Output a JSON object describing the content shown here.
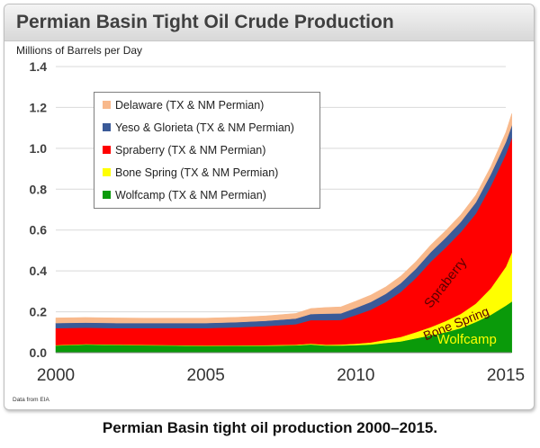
{
  "title": "Permian Basin Tight Oil Crude Production",
  "caption": "Permian Basin tight oil production 2000–2015.",
  "source": "Data from EIA",
  "chart_data": {
    "type": "area",
    "stacked": true,
    "title": "Permian Basin Tight Oil Crude Production",
    "ylabel": "Millions of Barrels per Day",
    "xlabel": "",
    "xlim": [
      2000,
      2015.2
    ],
    "ylim": [
      0,
      1.4
    ],
    "x_ticks": [
      2000,
      2005,
      2010,
      2015
    ],
    "y_ticks": [
      "0.0",
      "0.2",
      "0.4",
      "0.6",
      "0.8",
      "1.0",
      "1.2",
      "1.4"
    ],
    "grid": "horizontal",
    "legend_position": "upper-left",
    "x": [
      2000,
      2001,
      2002,
      2003,
      2004,
      2005,
      2006,
      2007,
      2008,
      2008.5,
      2009,
      2009.5,
      2010,
      2010.5,
      2011,
      2011.5,
      2012,
      2012.5,
      2013,
      2013.5,
      2014,
      2014.5,
      2015,
      2015.2
    ],
    "series": [
      {
        "name": "Wolfcamp (TX & NM Permian)",
        "color": "#0a9a0a",
        "values": [
          0.035,
          0.04,
          0.038,
          0.036,
          0.035,
          0.033,
          0.034,
          0.034,
          0.036,
          0.04,
          0.035,
          0.035,
          0.037,
          0.04,
          0.048,
          0.055,
          0.07,
          0.085,
          0.1,
          0.12,
          0.15,
          0.185,
          0.23,
          0.25
        ]
      },
      {
        "name": "Bone Spring (TX & NM Permian)",
        "color": "#ffff00",
        "values": [
          0.002,
          0.002,
          0.002,
          0.002,
          0.002,
          0.002,
          0.002,
          0.003,
          0.003,
          0.004,
          0.004,
          0.005,
          0.007,
          0.01,
          0.015,
          0.022,
          0.03,
          0.04,
          0.055,
          0.07,
          0.09,
          0.13,
          0.19,
          0.24
        ]
      },
      {
        "name": "Spraberry (TX & NM Permian)",
        "color": "#ff0000",
        "values": [
          0.083,
          0.08,
          0.08,
          0.082,
          0.083,
          0.085,
          0.088,
          0.093,
          0.1,
          0.115,
          0.12,
          0.12,
          0.14,
          0.16,
          0.185,
          0.22,
          0.265,
          0.32,
          0.36,
          0.4,
          0.44,
          0.5,
          0.55,
          0.56
        ]
      },
      {
        "name": "Yeso & Glorieta (TX & NM Permian)",
        "color": "#3a5a98",
        "values": [
          0.025,
          0.025,
          0.025,
          0.025,
          0.025,
          0.025,
          0.025,
          0.026,
          0.028,
          0.03,
          0.032,
          0.032,
          0.035,
          0.038,
          0.04,
          0.043,
          0.045,
          0.047,
          0.048,
          0.05,
          0.055,
          0.058,
          0.06,
          0.062
        ]
      },
      {
        "name": "Delaware (TX & NM Permian)",
        "color": "#f8b98c",
        "values": [
          0.025,
          0.025,
          0.025,
          0.024,
          0.024,
          0.024,
          0.024,
          0.024,
          0.025,
          0.027,
          0.03,
          0.032,
          0.033,
          0.034,
          0.034,
          0.035,
          0.035,
          0.035,
          0.035,
          0.035,
          0.036,
          0.037,
          0.048,
          0.058
        ]
      }
    ],
    "annotations": [
      {
        "text": "Spraberry",
        "series": "Spraberry (TX & NM Permian)"
      },
      {
        "text": "Bone Spring",
        "series": "Bone Spring (TX & NM Permian)"
      },
      {
        "text": "Wolfcamp",
        "series": "Wolfcamp (TX & NM Permian)"
      }
    ]
  }
}
